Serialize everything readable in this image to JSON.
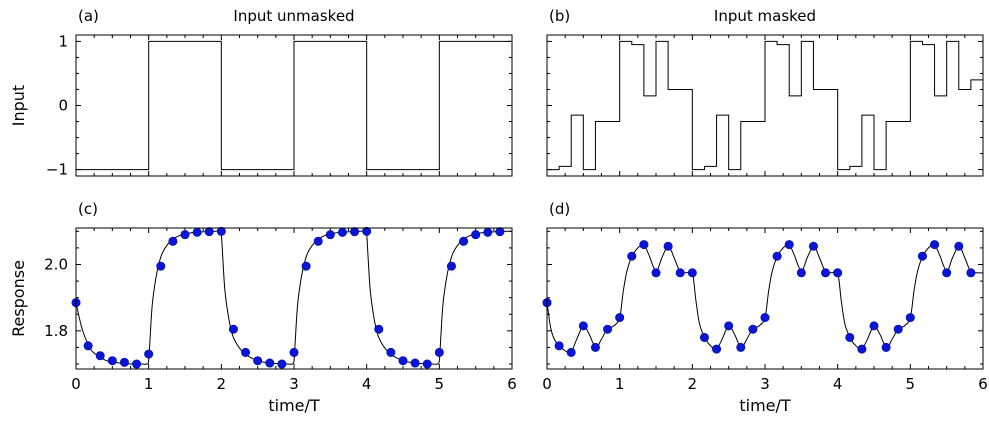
{
  "chart_data": [
    {
      "id": "a",
      "panel_label": "(a)",
      "title": "Input unmasked",
      "type": "line",
      "step": true,
      "xlim": [
        0,
        6
      ],
      "ylim": [
        -1.1,
        1.1
      ],
      "ylabel": "Input",
      "xlabel": "",
      "show_xticklabels": false,
      "show_yticklabels": true,
      "yticks": [
        -1,
        0,
        1
      ],
      "ytick_labels": [
        "−1",
        "0",
        "1"
      ],
      "series": [
        {
          "x": [
            0,
            1,
            1,
            2,
            2,
            3,
            3,
            4,
            4,
            5,
            5,
            6,
            6
          ],
          "y": [
            -1,
            -1,
            1,
            1,
            -1,
            -1,
            1,
            1,
            -1,
            -1,
            1,
            1,
            0
          ]
        }
      ]
    },
    {
      "id": "b",
      "panel_label": "(b)",
      "title": "Input masked",
      "type": "line",
      "step": true,
      "xlim": [
        0,
        6
      ],
      "ylim": [
        -1.1,
        1.1
      ],
      "ylabel": "",
      "xlabel": "",
      "show_xticklabels": false,
      "show_yticklabels": false,
      "yticks": [
        -1,
        0,
        1
      ],
      "series": [
        {
          "x": [
            0,
            0.1667,
            0.3333,
            0.5,
            0.6667,
            0.8333,
            1.0,
            1.1667,
            1.3333,
            1.5,
            1.6667,
            1.8333,
            2.0,
            2.1667,
            2.3333,
            2.5,
            2.6667,
            2.8333,
            3.0,
            3.1667,
            3.3333,
            3.5,
            3.6667,
            3.8333,
            4.0,
            4.1667,
            4.3333,
            4.5,
            4.6667,
            4.8333,
            5.0,
            5.1667,
            5.3333,
            5.5,
            5.6667,
            5.8333,
            6.0
          ],
          "y": [
            -1,
            -0.95,
            -0.15,
            -1,
            -0.25,
            -0.25,
            1,
            0.95,
            0.15,
            1,
            0.25,
            0.25,
            -1,
            -0.95,
            -0.15,
            -1,
            -0.25,
            -0.25,
            1,
            0.95,
            0.15,
            1,
            0.25,
            0.25,
            -1,
            -0.95,
            -0.15,
            -1,
            -0.25,
            -0.25,
            1,
            0.95,
            0.15,
            1,
            0.25,
            0.4,
            0.4
          ]
        }
      ]
    },
    {
      "id": "c",
      "panel_label": "(c)",
      "title": "",
      "type": "line",
      "xlim": [
        0,
        6
      ],
      "ylim": [
        1.685,
        2.11
      ],
      "ylabel": "Response",
      "xlabel": "time/T",
      "show_xticklabels": true,
      "show_yticklabels": true,
      "xticks": [
        0,
        1,
        2,
        3,
        4,
        5,
        6
      ],
      "xtick_labels": [
        "0",
        "1",
        "2",
        "3",
        "4",
        "5",
        "6"
      ],
      "yticks": [
        1.8,
        2.0
      ],
      "ytick_labels": [
        "1.8",
        "2.0"
      ],
      "curve": {
        "x": [
          0,
          0.05,
          0.1,
          0.2,
          0.3,
          0.4,
          0.5,
          0.6,
          0.7,
          0.8,
          0.9,
          0.97,
          1.0,
          1.02,
          1.05,
          1.1,
          1.15,
          1.2,
          1.3,
          1.4,
          1.5,
          1.6,
          1.7,
          1.8,
          1.9,
          1.97,
          2.0,
          2.02,
          2.05,
          2.1,
          2.15,
          2.2,
          2.3,
          2.4,
          2.5,
          2.6,
          2.7,
          2.8,
          2.9,
          2.97,
          3.0,
          3.02,
          3.05,
          3.1,
          3.15,
          3.2,
          3.3,
          3.4,
          3.5,
          3.6,
          3.7,
          3.8,
          3.9,
          3.97,
          4.0,
          4.02,
          4.05,
          4.1,
          4.15,
          4.2,
          4.3,
          4.4,
          4.5,
          4.6,
          4.7,
          4.8,
          4.9,
          4.97,
          5.0,
          5.02,
          5.05,
          5.1,
          5.15,
          5.2,
          5.3,
          5.4,
          5.5,
          5.6,
          5.7,
          5.8,
          5.9,
          6.0
        ],
        "y": [
          1.885,
          1.835,
          1.795,
          1.745,
          1.725,
          1.712,
          1.706,
          1.703,
          1.701,
          1.7,
          1.7,
          1.7,
          1.71,
          1.78,
          1.88,
          1.96,
          2.01,
          2.04,
          2.07,
          2.085,
          2.092,
          2.096,
          2.098,
          2.099,
          2.1,
          2.1,
          2.09,
          2.02,
          1.92,
          1.84,
          1.79,
          1.765,
          1.735,
          1.72,
          1.71,
          1.705,
          1.702,
          1.701,
          1.7,
          1.7,
          1.71,
          1.78,
          1.88,
          1.96,
          2.01,
          2.04,
          2.07,
          2.085,
          2.092,
          2.096,
          2.098,
          2.099,
          2.1,
          2.1,
          2.09,
          2.02,
          1.92,
          1.84,
          1.79,
          1.765,
          1.735,
          1.72,
          1.71,
          1.705,
          1.702,
          1.701,
          1.7,
          1.7,
          1.71,
          1.78,
          1.88,
          1.96,
          2.01,
          2.04,
          2.07,
          2.085,
          2.092,
          2.096,
          2.098,
          2.099,
          2.1,
          2.1
        ]
      },
      "points": {
        "x": [
          0,
          0.1667,
          0.3333,
          0.5,
          0.6667,
          0.8333,
          1.0,
          1.1667,
          1.3333,
          1.5,
          1.6667,
          1.8333,
          2.0,
          2.1667,
          2.3333,
          2.5,
          2.6667,
          2.8333,
          3.0,
          3.1667,
          3.3333,
          3.5,
          3.6667,
          3.8333,
          4.0,
          4.1667,
          4.3333,
          4.5,
          4.6667,
          4.8333,
          5.0,
          5.1667,
          5.3333,
          5.5,
          5.6667,
          5.8333
        ],
        "y": [
          1.885,
          1.755,
          1.725,
          1.71,
          1.705,
          1.7,
          1.73,
          1.995,
          2.07,
          2.09,
          2.097,
          2.099,
          2.1,
          1.805,
          1.735,
          1.71,
          1.703,
          1.7,
          1.735,
          1.995,
          2.07,
          2.09,
          2.097,
          2.099,
          2.1,
          1.805,
          1.735,
          1.71,
          1.703,
          1.7,
          1.735,
          1.995,
          2.07,
          2.09,
          2.097,
          2.099
        ]
      }
    },
    {
      "id": "d",
      "panel_label": "(d)",
      "title": "",
      "type": "line",
      "xlim": [
        0,
        6
      ],
      "ylim": [
        1.685,
        2.11
      ],
      "ylabel": "",
      "xlabel": "time/T",
      "show_xticklabels": true,
      "show_yticklabels": false,
      "xticks": [
        0,
        1,
        2,
        3,
        4,
        5,
        6
      ],
      "xtick_labels": [
        "0",
        "1",
        "2",
        "3",
        "4",
        "5",
        "6"
      ],
      "yticks": [
        1.8,
        2.0
      ],
      "curve": {
        "x": [
          0,
          0.05,
          0.1,
          0.17,
          0.25,
          0.33,
          0.4,
          0.5,
          0.58,
          0.67,
          0.75,
          0.83,
          0.92,
          1.0,
          1.05,
          1.1,
          1.17,
          1.25,
          1.33,
          1.4,
          1.5,
          1.58,
          1.67,
          1.75,
          1.83,
          1.92,
          2.0,
          2.05,
          2.1,
          2.17,
          2.25,
          2.33,
          2.4,
          2.5,
          2.58,
          2.67,
          2.75,
          2.83,
          2.92,
          3.0,
          3.05,
          3.1,
          3.17,
          3.25,
          3.33,
          3.4,
          3.5,
          3.58,
          3.67,
          3.75,
          3.83,
          3.92,
          4.0,
          4.05,
          4.1,
          4.17,
          4.25,
          4.33,
          4.4,
          4.5,
          4.58,
          4.67,
          4.75,
          4.83,
          4.92,
          5.0,
          5.05,
          5.1,
          5.17,
          5.25,
          5.33,
          5.4,
          5.5,
          5.58,
          5.67,
          5.75,
          5.83,
          5.92,
          6.0
        ],
        "y": [
          1.885,
          1.81,
          1.775,
          1.755,
          1.74,
          1.735,
          1.77,
          1.815,
          1.79,
          1.75,
          1.775,
          1.805,
          1.815,
          1.84,
          1.92,
          1.98,
          2.025,
          2.05,
          2.06,
          2.03,
          1.98,
          2.02,
          2.055,
          2.02,
          1.98,
          1.975,
          1.975,
          1.89,
          1.82,
          1.78,
          1.755,
          1.745,
          1.77,
          1.815,
          1.79,
          1.75,
          1.775,
          1.805,
          1.815,
          1.84,
          1.92,
          1.98,
          2.025,
          2.05,
          2.06,
          2.03,
          1.98,
          2.02,
          2.055,
          2.02,
          1.98,
          1.975,
          1.975,
          1.89,
          1.82,
          1.78,
          1.755,
          1.745,
          1.77,
          1.815,
          1.79,
          1.75,
          1.775,
          1.805,
          1.815,
          1.84,
          1.92,
          1.98,
          2.025,
          2.05,
          2.06,
          2.03,
          1.98,
          2.02,
          2.055,
          2.02,
          1.98,
          1.975,
          1.975
        ]
      },
      "points": {
        "x": [
          0,
          0.1667,
          0.3333,
          0.5,
          0.6667,
          0.8333,
          1.0,
          1.1667,
          1.3333,
          1.5,
          1.6667,
          1.8333,
          2.0,
          2.1667,
          2.3333,
          2.5,
          2.6667,
          2.8333,
          3.0,
          3.1667,
          3.3333,
          3.5,
          3.6667,
          3.8333,
          4.0,
          4.1667,
          4.3333,
          4.5,
          4.6667,
          4.8333,
          5.0,
          5.1667,
          5.3333,
          5.5,
          5.6667,
          5.8333
        ],
        "y": [
          1.885,
          1.755,
          1.735,
          1.815,
          1.75,
          1.805,
          1.84,
          2.025,
          2.06,
          1.975,
          2.055,
          1.975,
          1.975,
          1.78,
          1.745,
          1.815,
          1.75,
          1.805,
          1.84,
          2.025,
          2.06,
          1.975,
          2.055,
          1.975,
          1.975,
          1.78,
          1.745,
          1.815,
          1.75,
          1.805,
          1.84,
          2.025,
          2.06,
          1.975,
          2.055,
          1.975
        ]
      }
    }
  ]
}
